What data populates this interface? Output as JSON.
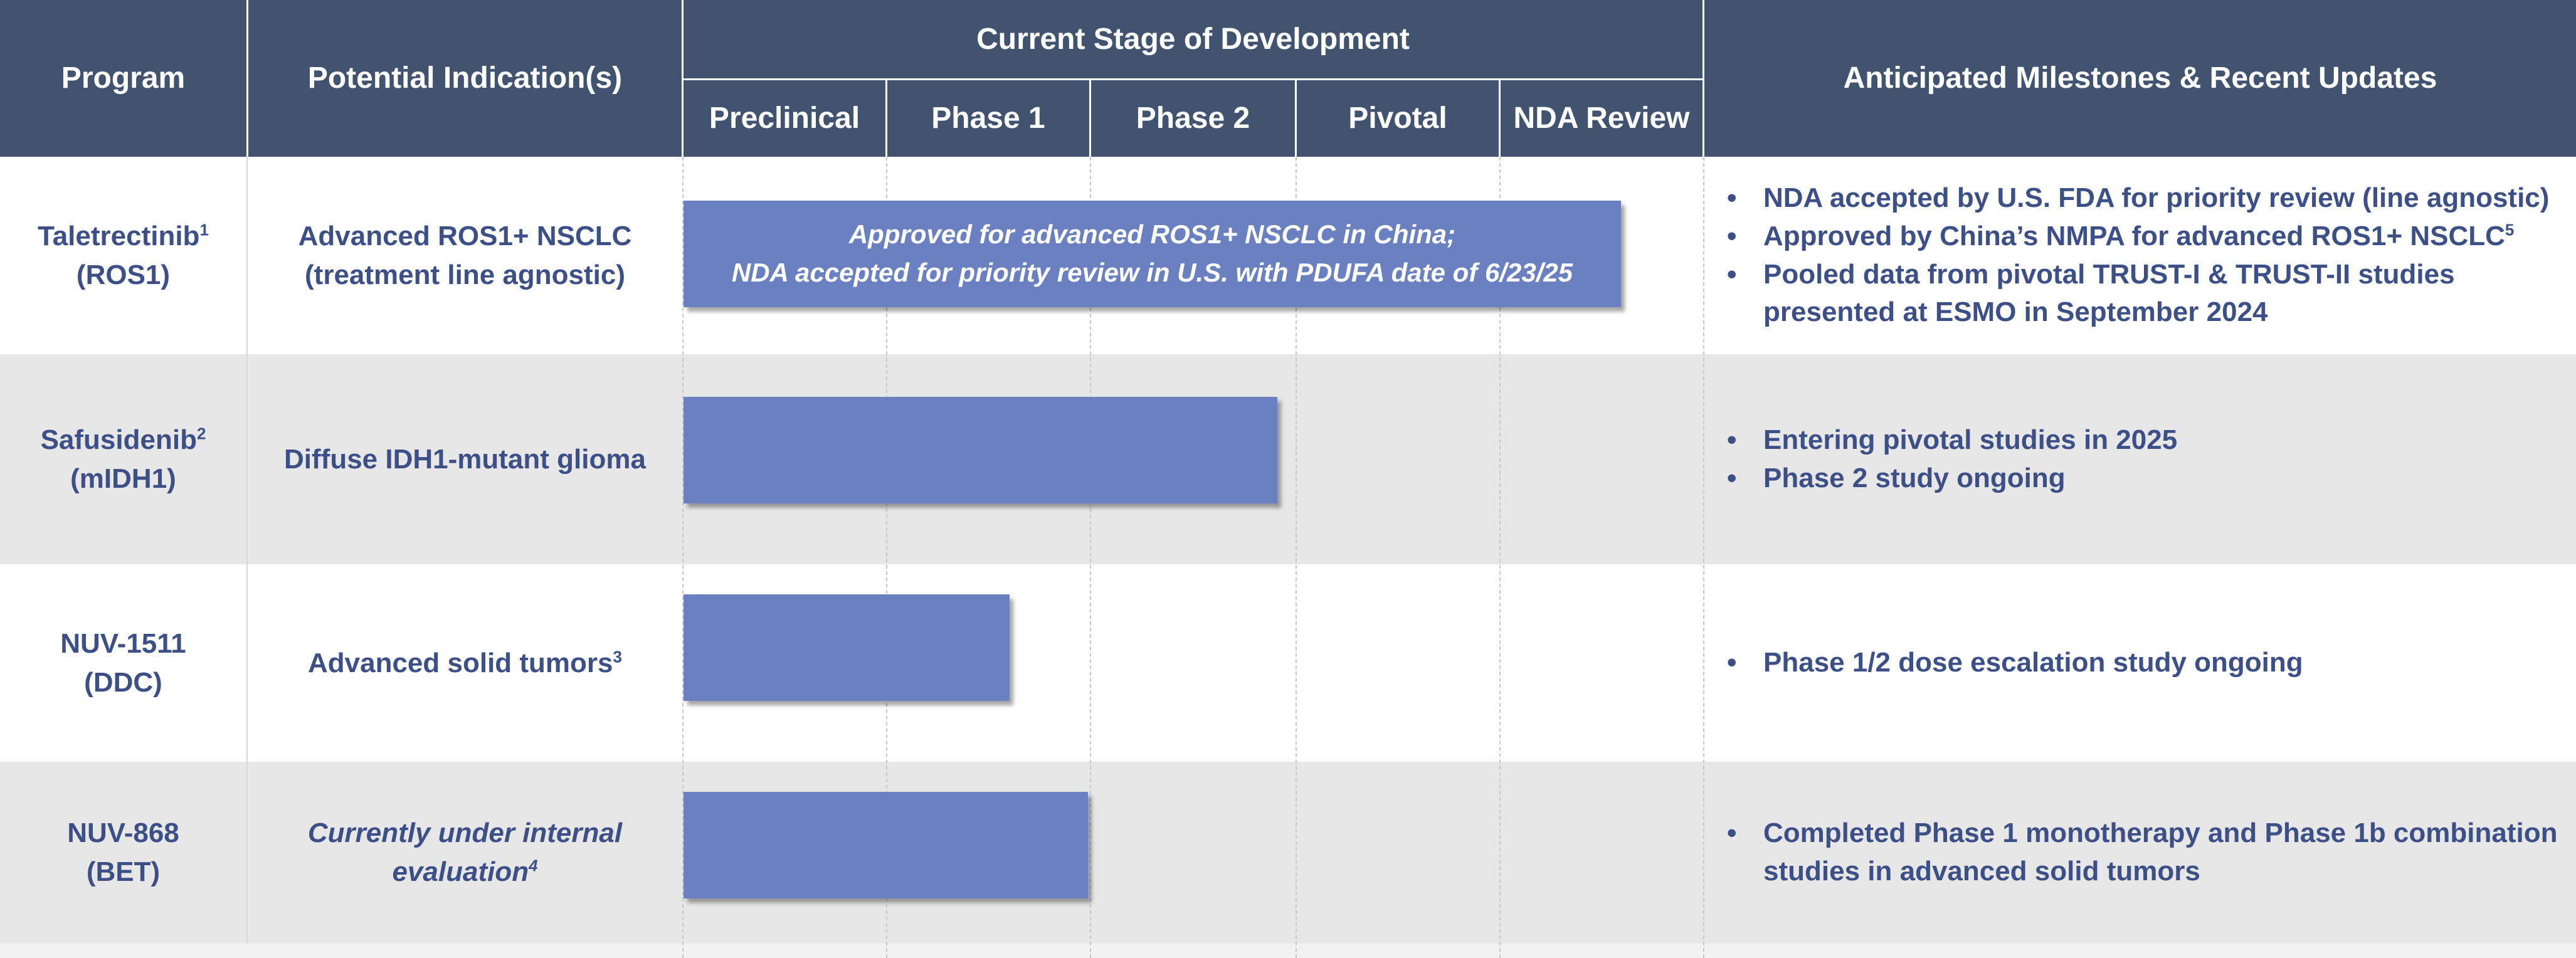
{
  "header": {
    "program": "Program",
    "indication": "Potential Indication(s)",
    "stage_title": "Current Stage of Development",
    "stages": [
      "Preclinical",
      "Phase 1",
      "Phase 2",
      "Pivotal",
      "NDA Review"
    ],
    "milestones": "Anticipated Milestones & Recent Updates"
  },
  "rows": [
    {
      "program_name": "Taletrectinib",
      "program_sup": "1",
      "program_target": "(ROS1)",
      "indication_line1": "Advanced ROS1+ NSCLC",
      "indication_line2": "(treatment line agnostic)",
      "indication_sup": "",
      "bar_line1": "Approved for advanced ROS1+ NSCLC in China;",
      "bar_line2": "NDA accepted for priority review in U.S. with PDUFA date of 6/23/25",
      "bar_progress": "NDA Review",
      "updates": [
        {
          "text": "NDA accepted by U.S. FDA for priority review (line agnostic)",
          "sup": ""
        },
        {
          "text": "Approved by China’s NMPA for advanced ROS1+ NSCLC",
          "sup": "5"
        },
        {
          "text": "Pooled data from pivotal TRUST-I & TRUST-II studies presented at ESMO in September 2024",
          "sup": ""
        }
      ]
    },
    {
      "program_name": "Safusidenib",
      "program_sup": "2",
      "program_target": "(mIDH1)",
      "indication_line1": "Diffuse IDH1-mutant glioma",
      "indication_line2": "",
      "indication_sup": "",
      "bar_progress": "Phase 2",
      "updates": [
        {
          "text": "Entering pivotal studies in 2025",
          "sup": ""
        },
        {
          "text": "Phase 2 study ongoing",
          "sup": ""
        }
      ]
    },
    {
      "program_name": "NUV-1511",
      "program_sup": "",
      "program_target": "(DDC)",
      "indication_line1": "Advanced solid tumors",
      "indication_line2": "",
      "indication_sup": "3",
      "bar_progress": "Phase 1",
      "updates": [
        {
          "text": "Phase 1/2 dose escalation study ongoing",
          "sup": ""
        }
      ]
    },
    {
      "program_name": "NUV-868",
      "program_sup": "",
      "program_target": "(BET)",
      "indication_line1": "Currently under internal",
      "indication_line2": "evaluation",
      "indication_sup": "4",
      "bar_progress": "Phase 1",
      "updates": [
        {
          "text": "Completed Phase 1 monotherapy and Phase 1b combination studies in advanced solid tumors",
          "sup": ""
        }
      ]
    }
  ],
  "bullet_glyph": "•",
  "colors": {
    "header_bg": "#425370",
    "text": "#3d4f87",
    "bar": "#6a80c0",
    "band_grey": "#e7e7e7"
  }
}
